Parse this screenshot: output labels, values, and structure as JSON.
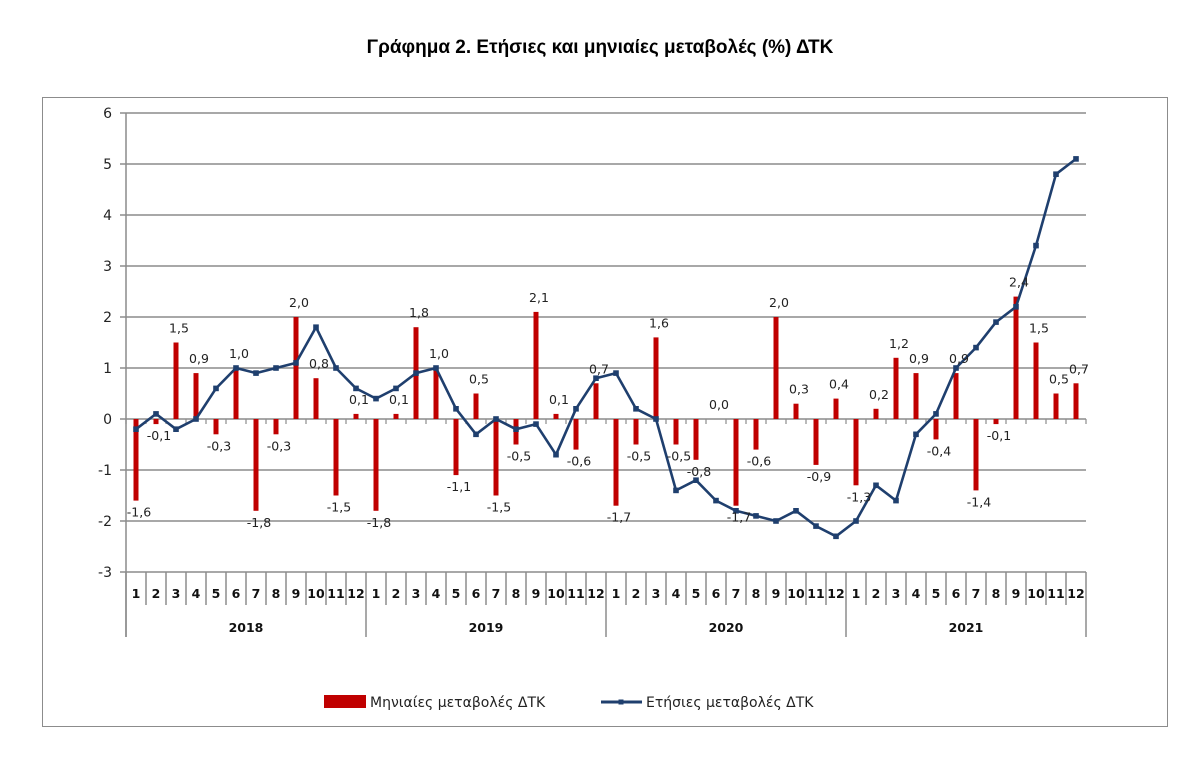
{
  "chart_data": {
    "type": "bar+line",
    "title": "Γράφημα 2. Ετήσιες και μηνιαίες μεταβολές (%) ΔΤΚ",
    "xlabel": "",
    "ylabel": "",
    "ylim": [
      -3,
      6
    ],
    "yticks": [
      "6",
      "5",
      "4",
      "3",
      "2",
      "1",
      "0",
      "-1",
      "-2",
      "-3"
    ],
    "ytick_values": [
      6,
      5,
      4,
      3,
      2,
      1,
      0,
      -1,
      -2,
      -3
    ],
    "grid": true,
    "legend_position": "bottom",
    "years": [
      "2018",
      "2019",
      "2020",
      "2021"
    ],
    "months": [
      "1",
      "2",
      "3",
      "4",
      "5",
      "6",
      "7",
      "8",
      "9",
      "10",
      "11",
      "12"
    ],
    "series": [
      {
        "name": "Μηνιαίες μεταβολές ΔΤΚ",
        "type": "bar",
        "color": "#c00000",
        "values": [
          -1.6,
          -0.1,
          1.5,
          0.9,
          -0.3,
          1.0,
          -1.8,
          -0.3,
          2.0,
          0.8,
          -1.5,
          0.1,
          -1.8,
          0.1,
          1.8,
          1.0,
          -1.1,
          0.5,
          -1.5,
          -0.5,
          2.1,
          0.1,
          -0.6,
          0.7,
          -1.7,
          -0.5,
          1.6,
          -0.5,
          -0.8,
          0.0,
          -1.7,
          -0.6,
          2.0,
          0.3,
          -0.9,
          0.4,
          -1.3,
          0.2,
          1.2,
          0.9,
          -0.4,
          0.9,
          -1.4,
          -0.1,
          2.4,
          1.5,
          0.5,
          0.7
        ],
        "labels": [
          "-1,6",
          "-0,1",
          "1,5",
          "0,9",
          "-0,3",
          "1,0",
          "-1,8",
          "-0,3",
          "2,0",
          "0,8",
          "-1,5",
          "0,1",
          "-1,8",
          "0,1",
          "1,8",
          "1,0",
          "-1,1",
          "0,5",
          "-1,5",
          "-0,5",
          "2,1",
          "0,1",
          "-0,6",
          "0,7",
          "-1,7",
          "-0,5",
          "1,6",
          "-0,5",
          "-0,8",
          "0,0",
          "-1,7",
          "-0,6",
          "2,0",
          "0,3",
          "-0,9",
          "0,4",
          "-1,3",
          "0,2",
          "1,2",
          "0,9",
          "-0,4",
          "0,9",
          "-1,4",
          "-0,1",
          "2,4",
          "1,5",
          "0,5",
          "0,7"
        ]
      },
      {
        "name": "Ετήσιες μεταβολές ΔΤΚ",
        "type": "line",
        "color": "#1f3f6e",
        "values": [
          -0.2,
          0.1,
          -0.2,
          0.0,
          0.6,
          1.0,
          0.9,
          1.0,
          1.1,
          1.8,
          1.0,
          0.6,
          0.4,
          0.6,
          0.9,
          1.0,
          0.2,
          -0.3,
          0.0,
          -0.2,
          -0.1,
          -0.7,
          0.2,
          0.8,
          0.9,
          0.2,
          0.0,
          -1.4,
          -1.2,
          -1.6,
          -1.8,
          -1.9,
          -2.0,
          -1.8,
          -2.1,
          -2.3,
          -2.0,
          -1.3,
          -1.6,
          -0.3,
          0.1,
          1.0,
          1.4,
          1.9,
          2.2,
          3.4,
          4.8,
          5.1
        ]
      }
    ]
  }
}
